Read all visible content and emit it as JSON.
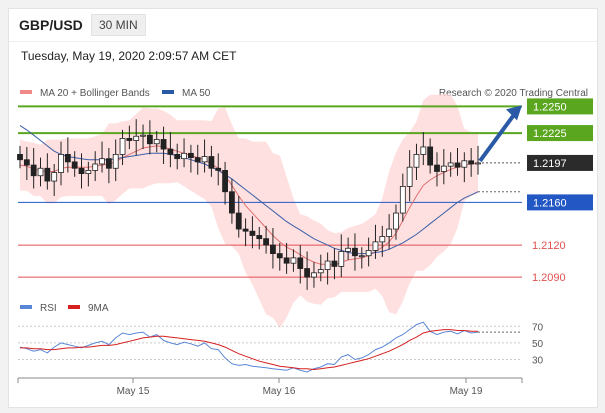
{
  "header": {
    "pair": "GBP/USD",
    "timeframe": "30 MIN"
  },
  "datetime": "Tuesday, May 19, 2020 2:09:57 AM CET",
  "colors": {
    "ma20": "#e07070",
    "ma50": "#3a5fa8",
    "bands_fill": "#ffd5d5",
    "resistance": "#5aa61f",
    "pivot": "#2358c4",
    "support": "#e05050",
    "candle": "#222222",
    "arrow": "#2a5aa6",
    "rsi": "#5a86d6",
    "ma9": "#d62020"
  },
  "chart_data": [
    {
      "type": "candlestick",
      "legend": [
        {
          "name": "MA 20 + Bollinger Bands",
          "color": "#f08a8a"
        },
        {
          "name": "MA 50",
          "color": "#2a5aa6"
        }
      ],
      "credit": "Research © 2020 Trading Central",
      "x_ticks": [
        "May 15",
        "May 16",
        "May 19"
      ],
      "ylim": [
        1.2076,
        1.2256
      ],
      "levels": [
        {
          "value": 1.225,
          "label": "1.2250",
          "kind": "resistance"
        },
        {
          "value": 1.2225,
          "label": "1.2225",
          "kind": "resistance"
        },
        {
          "value": 1.2197,
          "label": "1.2197",
          "kind": "last"
        },
        {
          "value": 1.216,
          "label": "1.2160",
          "kind": "pivot"
        },
        {
          "value": 1.212,
          "label": "1.2120",
          "kind": "support"
        },
        {
          "value": 1.209,
          "label": "1.2090",
          "kind": "support"
        }
      ],
      "close_series": [
        1.22,
        1.2195,
        1.2185,
        1.2192,
        1.218,
        1.2188,
        1.2205,
        1.2198,
        1.2192,
        1.2187,
        1.219,
        1.2196,
        1.2201,
        1.2192,
        1.2205,
        1.222,
        1.2218,
        1.2222,
        1.2223,
        1.2215,
        1.2219,
        1.221,
        1.2205,
        1.2201,
        1.2206,
        1.2202,
        1.2198,
        1.2203,
        1.2192,
        1.219,
        1.217,
        1.215,
        1.2135,
        1.2133,
        1.2129,
        1.2126,
        1.212,
        1.2112,
        1.2108,
        1.2103,
        1.2108,
        1.2098,
        1.209,
        1.2094,
        1.2097,
        1.2105,
        1.21,
        1.2114,
        1.2117,
        1.211,
        1.211,
        1.2115,
        1.2123,
        1.2128,
        1.2135,
        1.215,
        1.2175,
        1.2193,
        1.2205,
        1.2212,
        1.2195,
        1.2189,
        1.2194,
        1.2197,
        1.2193,
        1.2199,
        1.2196,
        1.2197
      ],
      "ma20": [
        1.2195,
        1.2194,
        1.2191,
        1.219,
        1.2189,
        1.2189,
        1.2192,
        1.2193,
        1.2193,
        1.2193,
        1.2193,
        1.2194,
        1.2195,
        1.2196,
        1.2198,
        1.2202,
        1.2205,
        1.2208,
        1.2211,
        1.2212,
        1.2213,
        1.2212,
        1.221,
        1.2208,
        1.2206,
        1.2204,
        1.2202,
        1.22,
        1.2196,
        1.2192,
        1.2185,
        1.2176,
        1.2166,
        1.2157,
        1.215,
        1.2143,
        1.2136,
        1.2129,
        1.2123,
        1.2118,
        1.2115,
        1.2111,
        1.2107,
        1.2104,
        1.2102,
        1.2102,
        1.2101,
        1.2104,
        1.2106,
        1.2107,
        1.2108,
        1.211,
        1.2114,
        1.2118,
        1.2123,
        1.2131,
        1.2143,
        1.2155,
        1.2166,
        1.2176,
        1.2181,
        1.2185,
        1.2188,
        1.2191,
        1.2193,
        1.2195,
        1.2196,
        1.2197
      ],
      "ma50": [
        1.2232,
        1.2228,
        1.2223,
        1.2218,
        1.2213,
        1.2208,
        1.2205,
        1.2203,
        1.2202,
        1.2201,
        1.22,
        1.22,
        1.22,
        1.22,
        1.2201,
        1.2202,
        1.2203,
        1.2204,
        1.2205,
        1.2206,
        1.2206,
        1.2206,
        1.2205,
        1.2204,
        1.2202,
        1.22,
        1.2198,
        1.2196,
        1.2193,
        1.219,
        1.2186,
        1.2182,
        1.2177,
        1.2172,
        1.2167,
        1.2162,
        1.2157,
        1.2152,
        1.2147,
        1.2142,
        1.2138,
        1.2134,
        1.213,
        1.2126,
        1.2123,
        1.212,
        1.2117,
        1.2115,
        1.2113,
        1.2112,
        1.2112,
        1.2112,
        1.2113,
        1.2114,
        1.2116,
        1.2119,
        1.2122,
        1.2126,
        1.213,
        1.2135,
        1.214,
        1.2145,
        1.215,
        1.2155,
        1.216,
        1.2164,
        1.2167,
        1.217
      ]
    },
    {
      "type": "line",
      "legend": [
        {
          "name": "RSI",
          "color": "#5a86d6"
        },
        {
          "name": "9MA",
          "color": "#d62020"
        }
      ],
      "y_ticks": [
        "70",
        "50",
        "30"
      ],
      "ylim": [
        15,
        80
      ],
      "series": [
        {
          "name": "RSI",
          "values": [
            45,
            43,
            40,
            42,
            38,
            45,
            50,
            48,
            46,
            44,
            47,
            50,
            52,
            48,
            56,
            62,
            60,
            62,
            63,
            57,
            60,
            53,
            50,
            48,
            51,
            49,
            46,
            50,
            43,
            42,
            32,
            25,
            23,
            24,
            22,
            21,
            20,
            19,
            18,
            17,
            20,
            17,
            15,
            19,
            21,
            25,
            24,
            33,
            36,
            30,
            32,
            36,
            42,
            45,
            50,
            56,
            60,
            66,
            72,
            75,
            64,
            60,
            63,
            64,
            61,
            65,
            62,
            63
          ]
        },
        {
          "name": "9MA",
          "values": [
            44,
            44,
            43,
            43,
            42,
            42,
            43,
            44,
            44,
            45,
            45,
            46,
            47,
            47,
            48,
            50,
            52,
            54,
            56,
            57,
            58,
            58,
            57,
            56,
            55,
            54,
            53,
            52,
            50,
            48,
            45,
            41,
            37,
            34,
            31,
            28,
            26,
            24,
            22,
            21,
            20,
            19,
            19,
            18,
            19,
            20,
            21,
            23,
            25,
            27,
            29,
            31,
            34,
            37,
            40,
            44,
            48,
            53,
            57,
            62,
            64,
            65,
            66,
            66,
            65,
            65,
            64,
            64
          ]
        }
      ]
    }
  ]
}
